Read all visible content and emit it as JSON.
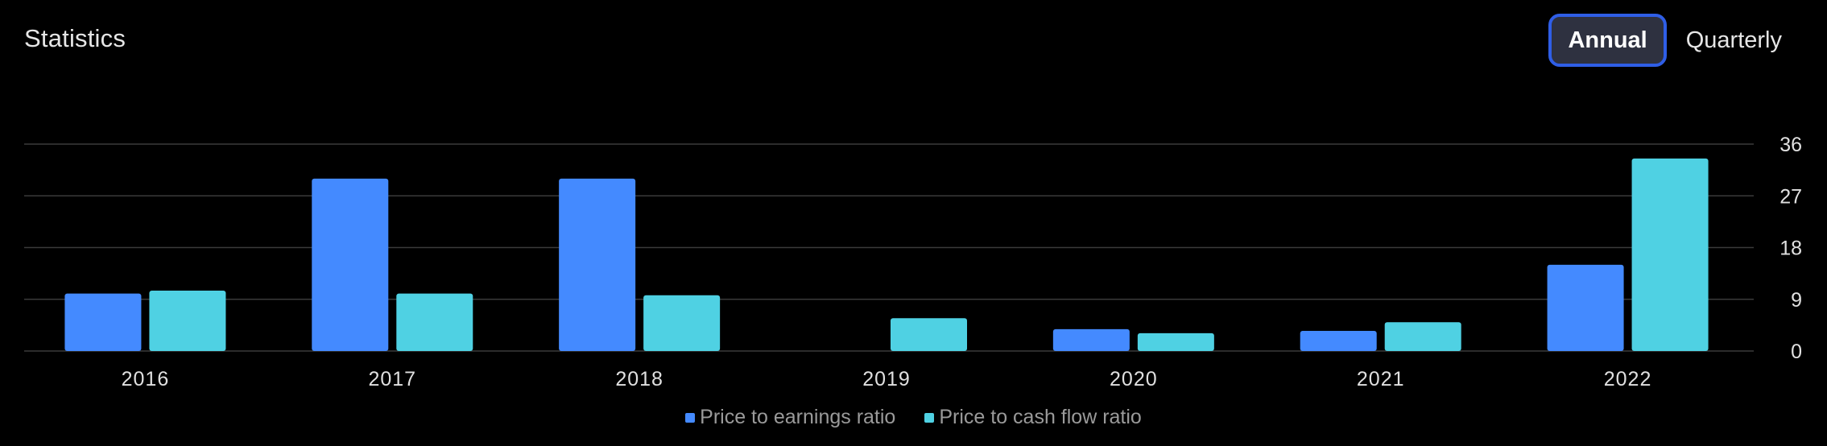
{
  "header": {
    "title": "Statistics"
  },
  "period_toggle": {
    "options": [
      "Annual",
      "Quarterly"
    ],
    "selected": "Annual"
  },
  "colors": {
    "background": "#000000",
    "pe_ratio": "#448aff",
    "pcf_ratio": "#4fd1e3",
    "gridline": "#3a3a3a",
    "axis_text": "#e0e0e0",
    "toggle_active_border": "#2f5ee6",
    "toggle_active_bg": "#2e3140"
  },
  "chart_data": {
    "type": "bar",
    "categories": [
      "2016",
      "2017",
      "2018",
      "2019",
      "2020",
      "2021",
      "2022"
    ],
    "series": [
      {
        "name": "Price to earnings ratio",
        "values": [
          10,
          30,
          30,
          0,
          3.8,
          3.5,
          15
        ]
      },
      {
        "name": "Price to cash flow ratio",
        "values": [
          10.5,
          10,
          9.7,
          5.7,
          3.1,
          5,
          33.5
        ]
      }
    ],
    "ylim": [
      0,
      36
    ],
    "yticks": [
      0,
      9,
      18,
      27,
      36
    ],
    "y_axis_position": "right",
    "grid": true,
    "legend": "bottom-center",
    "title": "",
    "xlabel": "",
    "ylabel": ""
  }
}
